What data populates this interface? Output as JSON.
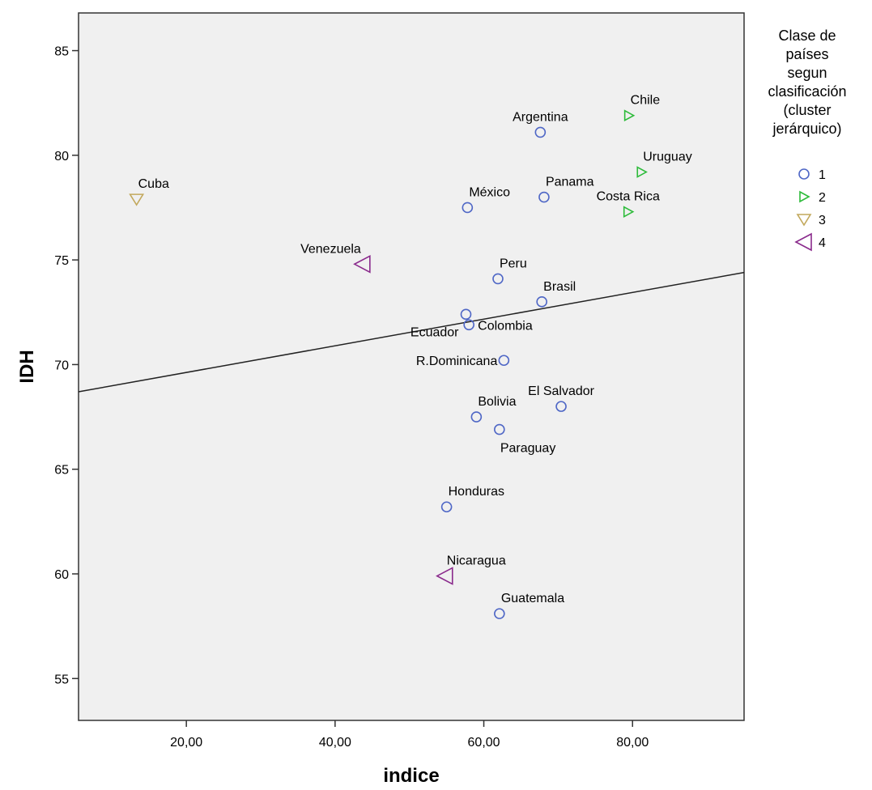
{
  "chart_data": {
    "type": "scatter",
    "xlabel": "indice",
    "ylabel": "IDH",
    "xlim": [
      5.5,
      95
    ],
    "ylim": [
      53,
      86.8
    ],
    "x_ticks": [
      {
        "value": 20,
        "label": "20,00"
      },
      {
        "value": 40,
        "label": "40,00"
      },
      {
        "value": 60,
        "label": "60,00"
      },
      {
        "value": 80,
        "label": "80,00"
      }
    ],
    "y_ticks": [
      {
        "value": 55,
        "label": "55"
      },
      {
        "value": 60,
        "label": "60"
      },
      {
        "value": 65,
        "label": "65"
      },
      {
        "value": 70,
        "label": "70"
      },
      {
        "value": 75,
        "label": "75"
      },
      {
        "value": 80,
        "label": "80"
      },
      {
        "value": 85,
        "label": "85"
      }
    ],
    "grid": false,
    "background": "#f0f0f0",
    "legend": {
      "title_lines": [
        "Clase de",
        "países",
        "segun",
        "clasificación",
        "(cluster",
        "jerárquico)"
      ],
      "placement": "right"
    },
    "series": [
      {
        "name": "1",
        "marker": "circle",
        "color": "#4f67c6"
      },
      {
        "name": "2",
        "marker": "triangle-right",
        "color": "#2dbb3a"
      },
      {
        "name": "3",
        "marker": "triangle-down",
        "color": "#c2a85c"
      },
      {
        "name": "4",
        "marker": "triangle-left",
        "color": "#8a2a8c"
      }
    ],
    "points": [
      {
        "label": "Argentina",
        "x": 67.6,
        "y": 81.1,
        "cluster": "1",
        "label_pos": "above"
      },
      {
        "label": "Chile",
        "x": 79.5,
        "y": 81.9,
        "cluster": "2",
        "label_pos": "above-right"
      },
      {
        "label": "Uruguay",
        "x": 81.2,
        "y": 79.2,
        "cluster": "2",
        "label_pos": "above-right"
      },
      {
        "label": "Costa Rica",
        "x": 79.4,
        "y": 77.3,
        "cluster": "2",
        "label_pos": "above"
      },
      {
        "label": "Panama",
        "x": 68.1,
        "y": 78.0,
        "cluster": "1",
        "label_pos": "above-right"
      },
      {
        "label": "México",
        "x": 57.8,
        "y": 77.5,
        "cluster": "1",
        "label_pos": "above-right"
      },
      {
        "label": "Cuba",
        "x": 13.3,
        "y": 77.9,
        "cluster": "3",
        "label_pos": "above-right"
      },
      {
        "label": "Venezuela",
        "x": 43.7,
        "y": 74.8,
        "cluster": "4",
        "label_pos": "above-left"
      },
      {
        "label": "Peru",
        "x": 61.9,
        "y": 74.1,
        "cluster": "1",
        "label_pos": "above-right"
      },
      {
        "label": "Brasil",
        "x": 67.8,
        "y": 73.0,
        "cluster": "1",
        "label_pos": "above-right"
      },
      {
        "label": "Ecuador",
        "x": 57.6,
        "y": 72.4,
        "cluster": "1",
        "label_pos": "below-left"
      },
      {
        "label": "Colombia",
        "x": 58.0,
        "y": 71.9,
        "cluster": "1",
        "label_pos": "right"
      },
      {
        "label": "R.Dominicana",
        "x": 62.7,
        "y": 70.2,
        "cluster": "1",
        "label_pos": "left"
      },
      {
        "label": "El Salvador",
        "x": 70.4,
        "y": 68.0,
        "cluster": "1",
        "label_pos": "above"
      },
      {
        "label": "Bolivia",
        "x": 59.0,
        "y": 67.5,
        "cluster": "1",
        "label_pos": "above-right"
      },
      {
        "label": "Paraguay",
        "x": 62.1,
        "y": 66.9,
        "cluster": "1",
        "label_pos": "below-right"
      },
      {
        "label": "Honduras",
        "x": 55.0,
        "y": 63.2,
        "cluster": "1",
        "label_pos": "above-right"
      },
      {
        "label": "Nicaragua",
        "x": 54.8,
        "y": 59.9,
        "cluster": "4",
        "label_pos": "above-right"
      },
      {
        "label": "Guatemala",
        "x": 62.1,
        "y": 58.1,
        "cluster": "1",
        "label_pos": "above-right"
      }
    ],
    "fit_line": {
      "x": [
        5.5,
        95
      ],
      "y": [
        68.7,
        74.4
      ]
    }
  }
}
